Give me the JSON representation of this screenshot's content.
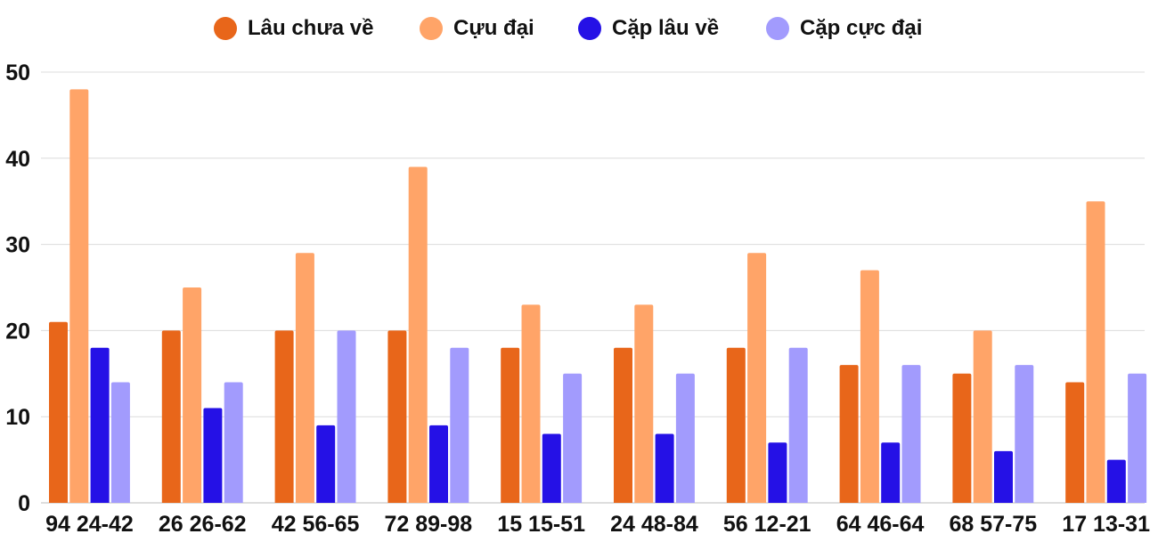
{
  "chart_data": {
    "type": "bar",
    "title": "",
    "xlabel": "",
    "ylabel": "",
    "ylim": [
      0,
      50
    ],
    "yticks": [
      "0",
      "10",
      "20",
      "30",
      "40",
      "50"
    ],
    "grid": true,
    "legend_position": "top-center",
    "categories": [
      "94 24-42",
      "26 26-62",
      "42 56-65",
      "72 89-98",
      "15 15-51",
      "24 48-84",
      "56 12-21",
      "64 46-64",
      "68 57-75",
      "17 13-31"
    ],
    "series": [
      {
        "name": "Lâu chưa về",
        "color": "#e8661a",
        "values": [
          21,
          20,
          20,
          20,
          18,
          18,
          18,
          16,
          15,
          14
        ]
      },
      {
        "name": "Cựu đại",
        "color": "#ffa468",
        "values": [
          48,
          25,
          29,
          39,
          23,
          23,
          29,
          27,
          20,
          35
        ]
      },
      {
        "name": "Cặp lâu về",
        "color": "#2511e6",
        "values": [
          18,
          11,
          9,
          9,
          8,
          8,
          7,
          7,
          6,
          5
        ]
      },
      {
        "name": "Cặp cực đại",
        "color": "#a29bfd",
        "values": [
          14,
          14,
          20,
          18,
          15,
          15,
          18,
          16,
          16,
          15
        ]
      }
    ]
  }
}
